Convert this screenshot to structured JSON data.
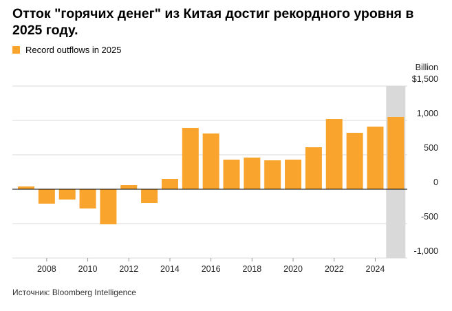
{
  "title": "Отток \"горячих денег\" из Китая достиг рекордного уровня в 2025 году.",
  "legend": {
    "label": "Record outflows in 2025",
    "color": "#F8A42D"
  },
  "source": "Источник: Bloomberg Intelligence",
  "colors": {
    "bar": "#F8A42D",
    "highlight_band": "#D9D9D9",
    "grid": "#D9D9D9",
    "zero_line": "#000000"
  },
  "chart_data": {
    "type": "bar",
    "title": "Отток \"горячих денег\" из Китая достиг рекордного уровня в 2025 году.",
    "x": [
      2007,
      2008,
      2009,
      2010,
      2011,
      2012,
      2013,
      2014,
      2015,
      2016,
      2017,
      2018,
      2019,
      2020,
      2021,
      2022,
      2023,
      2024,
      2025
    ],
    "values": [
      40,
      -210,
      -150,
      -280,
      -510,
      60,
      -200,
      150,
      890,
      810,
      430,
      460,
      420,
      430,
      610,
      1020,
      820,
      910,
      1050
    ],
    "highlight_x": 2025,
    "x_tick_labels": [
      "2008",
      "2010",
      "2012",
      "2014",
      "2016",
      "2018",
      "2020",
      "2022",
      "2024"
    ],
    "y_tick_labels": [
      "$1,500",
      "1,000",
      "500",
      "0",
      "-500",
      "-1,000"
    ],
    "y_ticks": [
      1500,
      1000,
      500,
      0,
      -500,
      -1000
    ],
    "y_unit_label": "Billion",
    "ylim": [
      -1000,
      1500
    ],
    "grid": true,
    "legend_position": "top-left"
  }
}
